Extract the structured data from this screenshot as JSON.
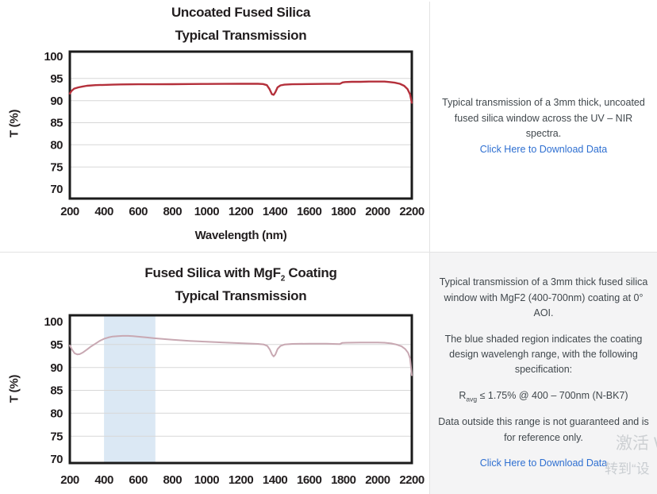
{
  "page": {
    "watermark_line1": "激活 W",
    "watermark_line2": "转到“设"
  },
  "top_section": {
    "panel": {
      "description": "Typical transmission of a 3mm thick, uncoated fused silica window across the UV – NIR spectra.",
      "link_label": "Click Here to Download Data"
    }
  },
  "bottom_section": {
    "panel": {
      "description": "Typical transmission of a 3mm thick fused silica window with MgF2 (400-700nm) coating at 0° AOI.",
      "shaded_note": "The blue shaded region indicates the coating design wavelengh range, with the following specification:",
      "spec_prefix": "R",
      "spec_sub": "avg",
      "spec_rest": " ≤ 1.75% @ 400 – 700nm (N-BK7)",
      "outside_note": "Data outside this range is not guaranteed and is for reference only.",
      "link_label": "Click Here to Download Data"
    }
  },
  "chart_data": [
    {
      "type": "line",
      "title_line1": "Uncoated Fused Silica",
      "title_line2": "Typical Transmission",
      "xlabel": "Wavelength (nm)",
      "ylabel": "T (%)",
      "xlim": [
        200,
        2200
      ],
      "ylim": [
        70,
        100
      ],
      "xticks": [
        200,
        400,
        600,
        800,
        1000,
        1200,
        1400,
        1600,
        1800,
        2000,
        2200
      ],
      "yticks": [
        70,
        75,
        80,
        85,
        90,
        95,
        100
      ],
      "grid": "horizontal",
      "grid_color": "#d7d7d7",
      "border_color": "#1b1b1b",
      "line_color": "#b4303b",
      "series": [
        {
          "name": "Uncoated Fused Silica Typical Transmission",
          "points": [
            [
              200,
              91.6
            ],
            [
              210,
              92.2
            ],
            [
              225,
              92.7
            ],
            [
              250,
              93.0
            ],
            [
              275,
              93.2
            ],
            [
              300,
              93.35
            ],
            [
              350,
              93.5
            ],
            [
              400,
              93.55
            ],
            [
              450,
              93.6
            ],
            [
              500,
              93.65
            ],
            [
              600,
              93.7
            ],
            [
              700,
              93.7
            ],
            [
              800,
              93.72
            ],
            [
              900,
              93.75
            ],
            [
              1000,
              93.76
            ],
            [
              1100,
              93.78
            ],
            [
              1200,
              93.8
            ],
            [
              1300,
              93.8
            ],
            [
              1330,
              93.75
            ],
            [
              1352,
              93.5
            ],
            [
              1368,
              92.6
            ],
            [
              1382,
              91.45
            ],
            [
              1392,
              91.3
            ],
            [
              1402,
              91.9
            ],
            [
              1415,
              93.0
            ],
            [
              1432,
              93.45
            ],
            [
              1455,
              93.6
            ],
            [
              1500,
              93.7
            ],
            [
              1600,
              93.75
            ],
            [
              1700,
              93.78
            ],
            [
              1780,
              93.8
            ],
            [
              1795,
              94.1
            ],
            [
              1810,
              94.2
            ],
            [
              1850,
              94.25
            ],
            [
              1900,
              94.25
            ],
            [
              1950,
              94.3
            ],
            [
              2000,
              94.3
            ],
            [
              2040,
              94.3
            ],
            [
              2070,
              94.2
            ],
            [
              2100,
              94.05
            ],
            [
              2130,
              93.8
            ],
            [
              2155,
              93.35
            ],
            [
              2175,
              92.6
            ],
            [
              2190,
              91.4
            ],
            [
              2200,
              89.5
            ]
          ]
        }
      ]
    },
    {
      "type": "line",
      "title_line1": {
        "pre": "Fused Silica with MgF",
        "sub": "2",
        "post": " Coating"
      },
      "title_line2": "Typical Transmission",
      "xlabel": "",
      "ylabel": "T (%)",
      "xlim": [
        200,
        2200
      ],
      "ylim": [
        70,
        100
      ],
      "xticks": [
        200,
        400,
        600,
        800,
        1000,
        1200,
        1400,
        1600,
        1800,
        2000,
        2200
      ],
      "yticks": [
        70,
        75,
        80,
        85,
        90,
        95,
        100
      ],
      "grid": "horizontal",
      "grid_color": "#d7d7d7",
      "border_color": "#1b1b1b",
      "line_color": "#c8a8b2",
      "shaded_region": {
        "x0": 400,
        "x1": 700,
        "color": "#dbe8f4"
      },
      "series": [
        {
          "name": "Fused Silica with MgF2 Coating Typical Transmission",
          "points": [
            [
              200,
              94.8
            ],
            [
              213,
              93.9
            ],
            [
              228,
              93.1
            ],
            [
              243,
              92.85
            ],
            [
              258,
              92.9
            ],
            [
              278,
              93.3
            ],
            [
              300,
              93.9
            ],
            [
              325,
              94.6
            ],
            [
              350,
              95.2
            ],
            [
              375,
              95.8
            ],
            [
              400,
              96.25
            ],
            [
              425,
              96.55
            ],
            [
              450,
              96.75
            ],
            [
              480,
              96.85
            ],
            [
              510,
              96.9
            ],
            [
              540,
              96.9
            ],
            [
              570,
              96.82
            ],
            [
              600,
              96.72
            ],
            [
              650,
              96.55
            ],
            [
              700,
              96.35
            ],
            [
              750,
              96.2
            ],
            [
              800,
              96.05
            ],
            [
              850,
              95.92
            ],
            [
              900,
              95.8
            ],
            [
              950,
              95.7
            ],
            [
              1000,
              95.62
            ],
            [
              1100,
              95.45
            ],
            [
              1200,
              95.3
            ],
            [
              1300,
              95.15
            ],
            [
              1335,
              95.0
            ],
            [
              1355,
              94.7
            ],
            [
              1370,
              93.9
            ],
            [
              1383,
              92.8
            ],
            [
              1392,
              92.4
            ],
            [
              1402,
              92.8
            ],
            [
              1415,
              94.0
            ],
            [
              1432,
              94.7
            ],
            [
              1455,
              95.0
            ],
            [
              1500,
              95.15
            ],
            [
              1600,
              95.2
            ],
            [
              1700,
              95.18
            ],
            [
              1778,
              95.1
            ],
            [
              1792,
              95.35
            ],
            [
              1820,
              95.4
            ],
            [
              1900,
              95.45
            ],
            [
              2000,
              95.45
            ],
            [
              2040,
              95.4
            ],
            [
              2080,
              95.25
            ],
            [
              2110,
              95.0
            ],
            [
              2140,
              94.6
            ],
            [
              2162,
              94.0
            ],
            [
              2178,
              93.2
            ],
            [
              2190,
              92.0
            ],
            [
              2200,
              88.3
            ]
          ]
        }
      ]
    }
  ]
}
